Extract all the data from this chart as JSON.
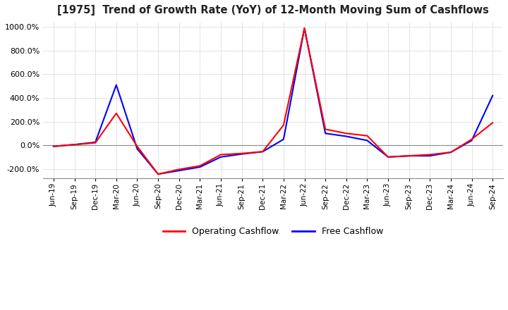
{
  "title": "[1975]  Trend of Growth Rate (YoY) of 12-Month Moving Sum of Cashflows",
  "ylim": [
    -280,
    1050
  ],
  "yticks": [
    -200,
    0,
    200,
    400,
    600,
    800,
    1000
  ],
  "background_color": "#ffffff",
  "grid_color": "#aaaaaa",
  "legend_labels": [
    "Operating Cashflow",
    "Free Cashflow"
  ],
  "legend_colors": [
    "#ff0000",
    "#0000ff"
  ],
  "x_labels": [
    "Jun-19",
    "Sep-19",
    "Dec-19",
    "Mar-20",
    "Jun-20",
    "Sep-20",
    "Dec-20",
    "Mar-21",
    "Jun-21",
    "Sep-21",
    "Dec-21",
    "Mar-22",
    "Jun-22",
    "Sep-22",
    "Dec-22",
    "Mar-23",
    "Jun-23",
    "Sep-23",
    "Dec-23",
    "Mar-24",
    "Jun-24",
    "Sep-24"
  ],
  "operating_cashflow": [
    -10,
    5,
    20,
    270,
    -10,
    -245,
    -205,
    -175,
    -80,
    -70,
    -55,
    170,
    990,
    135,
    100,
    80,
    -100,
    -90,
    -80,
    -60,
    50,
    190
  ],
  "free_cashflow": [
    -10,
    5,
    25,
    510,
    -30,
    -245,
    -215,
    -185,
    -100,
    -75,
    -55,
    50,
    990,
    100,
    75,
    40,
    -100,
    -90,
    -90,
    -60,
    40,
    420
  ]
}
